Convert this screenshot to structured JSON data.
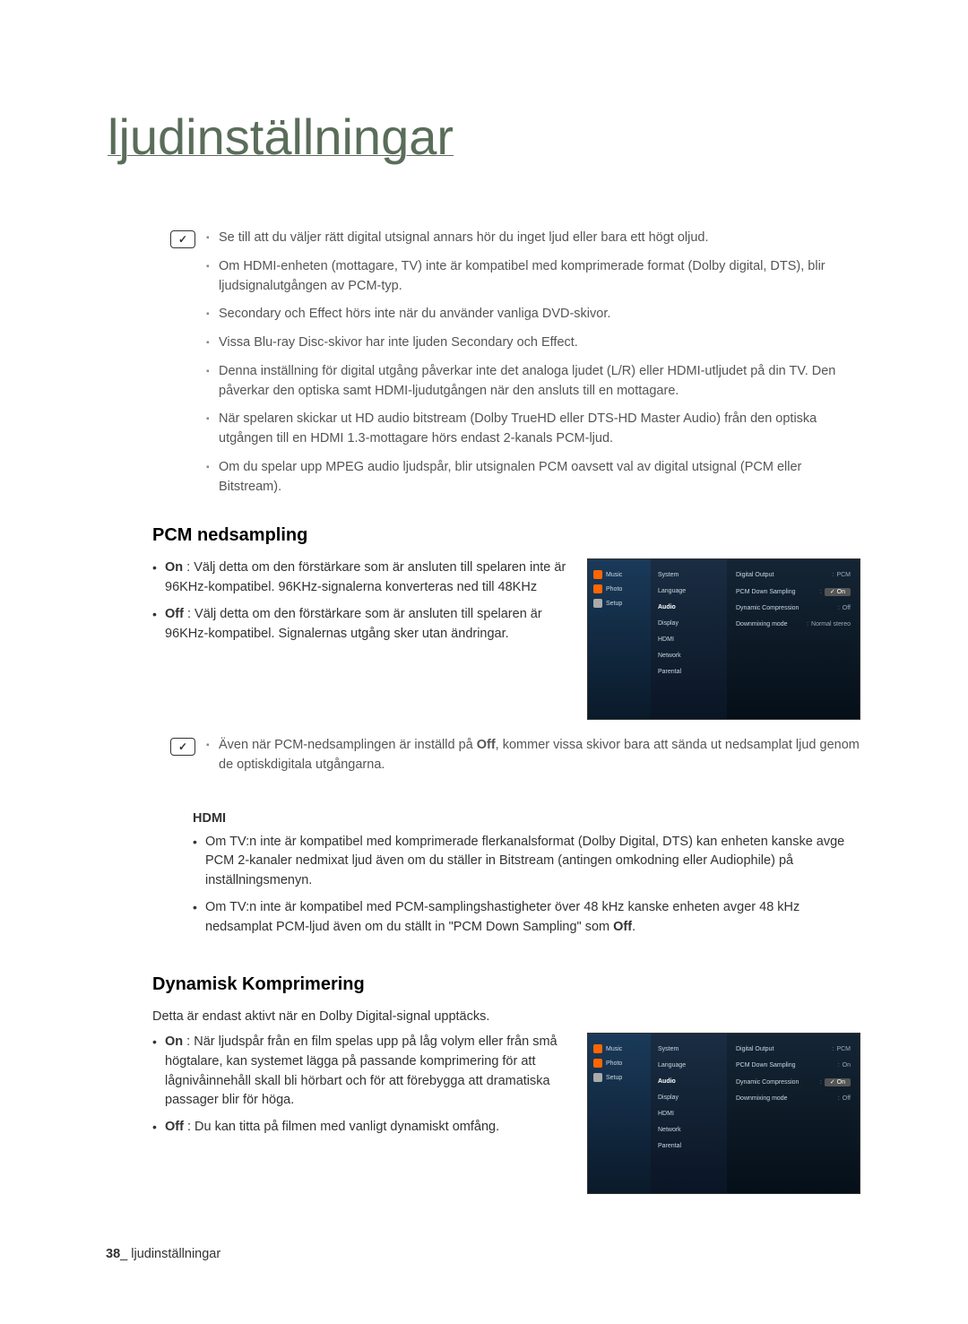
{
  "page": {
    "main_title": "ljudinställningar",
    "footer_num": "38",
    "footer_sep": "_",
    "footer_text": "ljudinställningar"
  },
  "top_notes": [
    "Se till att du väljer rätt digital utsignal annars hör du inget ljud eller bara ett högt oljud.",
    "Om HDMI-enheten (mottagare, TV) inte är kompatibel med komprimerade format (Dolby digital, DTS), blir ljudsignalutgången av PCM-typ.",
    "Secondary och Effect hörs inte när du använder vanliga DVD-skivor.",
    "Vissa Blu-ray Disc-skivor har inte ljuden Secondary och Effect.",
    "Denna inställning för digital utgång påverkar inte det analoga ljudet (L/R) eller HDMI-utljudet på din TV. Den påverkar den optiska samt HDMI-ljudutgången när den ansluts till en mottagare.",
    "När spelaren skickar ut HD audio bitstream (Dolby TrueHD eller DTS-HD Master Audio) från den optiska utgången till en HDMI 1.3-mottagare hörs endast 2-kanals PCM-ljud.",
    "Om du spelar upp MPEG audio ljudspår, blir utsignalen PCM oavsett val av digital utsignal (PCM eller Bitstream)."
  ],
  "pcm": {
    "title": "PCM nedsampling",
    "on_label": "On",
    "on_text": " : Välj detta om den förstärkare som är ansluten till spelaren inte är 96KHz-kompatibel. 96KHz-signalerna konverteras ned till 48KHz",
    "off_label": "Off",
    "off_text": " : Välj detta om den förstärkare som är ansluten till spelaren är 96KHz-kompatibel. Signalernas utgång sker utan ändringar.",
    "note_pre": "Även när PCM-nedsamplingen är inställd på ",
    "note_off": "Off",
    "note_post": ", kommer vissa skivor bara att sända ut nedsamplat ljud genom de optiskdigitala utgångarna."
  },
  "hdmi": {
    "title": "HDMI",
    "item1": "Om TV:n inte är kompatibel med komprimerade flerkanalsformat (Dolby Digital, DTS) kan enheten kanske avge PCM 2-kanaler nedmixat ljud även om du ställer in Bitstream (antingen omkodning eller Audiophile) på inställningsmenyn.",
    "item2_pre": "Om TV:n inte är kompatibel med PCM-samplingshastigheter över 48 kHz kanske enheten avger 48 kHz nedsamplat PCM-ljud även om du ställt in \"PCM Down Sampling\" som ",
    "item2_off": "Off",
    "item2_post": "."
  },
  "dynamic": {
    "title": "Dynamisk Komprimering",
    "intro": "Detta är endast aktivt när en Dolby Digital-signal upptäcks.",
    "on_label": "On",
    "on_text": " : När ljudspår från en film spelas upp på låg volym eller från små högtalare, kan systemet lägga på passande komprimering för att lågnivåinnehåll skall bli hörbart och för att förebygga att dramatiska passager blir för höga.",
    "off_label": "Off",
    "off_text": " : Du kan titta på filmen med vanligt dynamiskt omfång."
  },
  "ss_left": {
    "music": "Music",
    "photo": "Photo",
    "setup": "Setup"
  },
  "ss_mid": [
    "System",
    "Language",
    "Audio",
    "Display",
    "HDMI",
    "Network",
    "Parental"
  ],
  "ss1": {
    "active_idx": 2,
    "highlight_idx": 1,
    "rows": [
      {
        "l": "Digital Output",
        "v": "PCM"
      },
      {
        "l": "PCM Down Sampling",
        "v": "✓ On"
      },
      {
        "l": "Dynamic Compression",
        "v": "Off"
      },
      {
        "l": "Downmixing mode",
        "v": "Normal stereo"
      }
    ]
  },
  "ss2": {
    "active_idx": 2,
    "highlight_idx": 2,
    "rows": [
      {
        "l": "Digital Output",
        "v": "PCM"
      },
      {
        "l": "PCM Down Sampling",
        "v": "On"
      },
      {
        "l": "Dynamic Compression",
        "v": "✓ On"
      },
      {
        "l": "Downmixing mode",
        "v": "Off"
      }
    ]
  }
}
